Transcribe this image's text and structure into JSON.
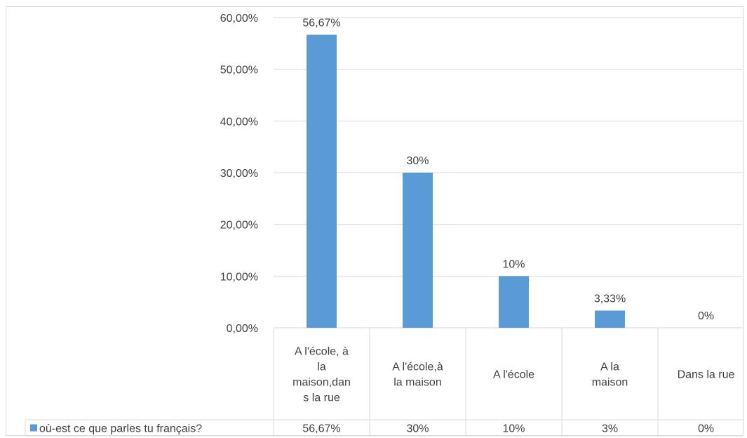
{
  "chart_data": {
    "type": "bar",
    "categories": [
      [
        "A l'école, à",
        "la",
        "maison,dan",
        "s la rue"
      ],
      [
        "A l'école,à",
        "la maison"
      ],
      [
        "A l'école"
      ],
      [
        "A  la",
        "maison"
      ],
      [
        "Dans la rue"
      ]
    ],
    "series": [
      {
        "name": "où-est ce que parles tu français?",
        "values": [
          56.67,
          30,
          10,
          3.33,
          0
        ],
        "data_labels": [
          "56,67%",
          "30%",
          "10%",
          "3,33%",
          "0%"
        ],
        "table_values": [
          "56,67%",
          "30%",
          "10%",
          "3%",
          "0%"
        ],
        "color": "#5b9bd5"
      }
    ],
    "ylim": [
      0,
      60
    ],
    "y_ticks": [
      0,
      10,
      20,
      30,
      40,
      50,
      60
    ],
    "y_tick_labels": [
      "0,00%",
      "10,00%",
      "20,00%",
      "30,00%",
      "40,00%",
      "50,00%",
      "60,00%"
    ],
    "grid": true,
    "legend": "data-table-left",
    "gridline_color": "#d9d9d9"
  }
}
